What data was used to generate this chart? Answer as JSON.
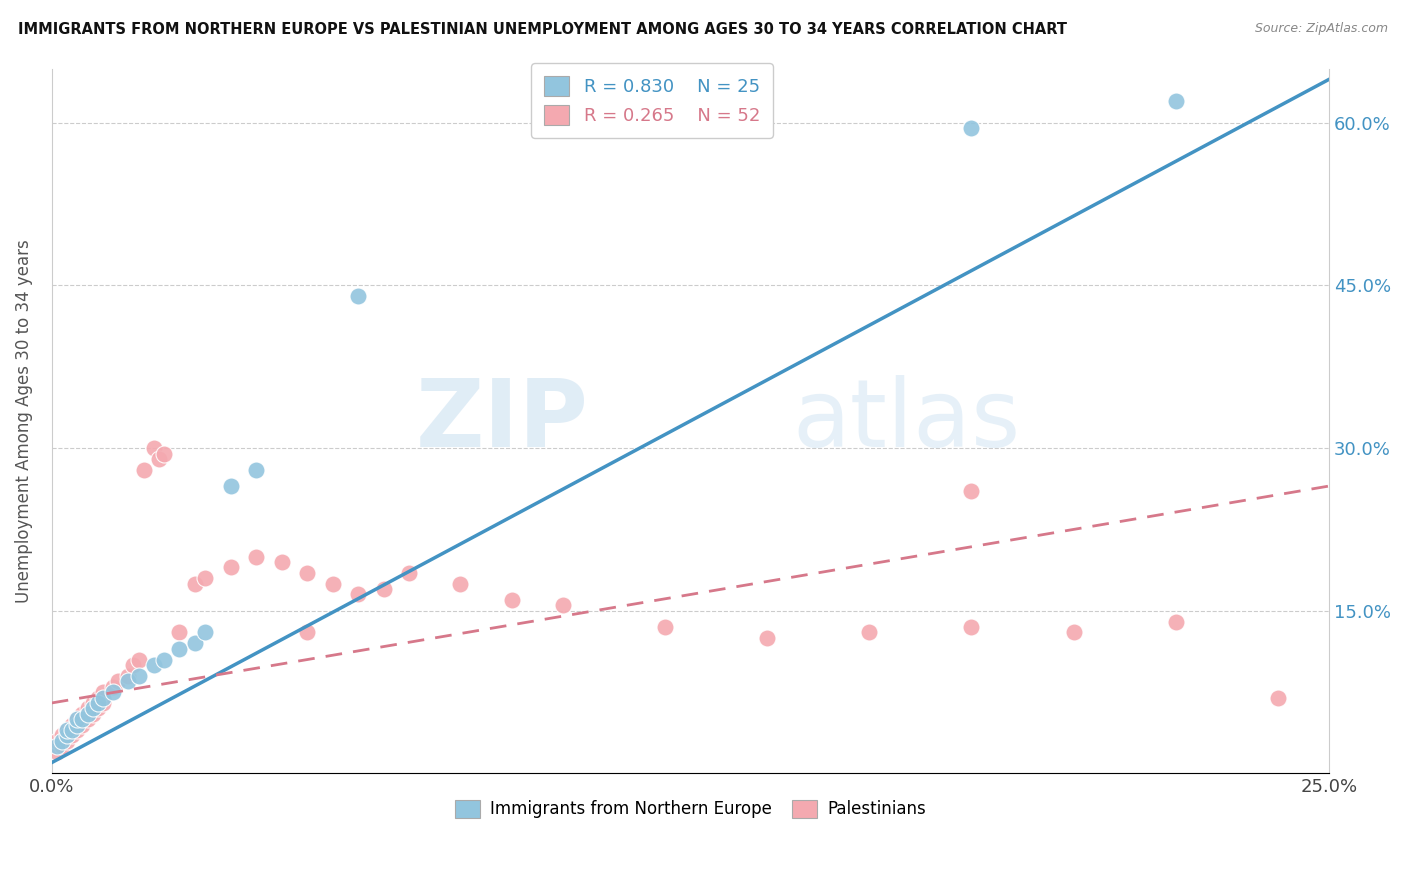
{
  "title": "IMMIGRANTS FROM NORTHERN EUROPE VS PALESTINIAN UNEMPLOYMENT AMONG AGES 30 TO 34 YEARS CORRELATION CHART",
  "source": "Source: ZipAtlas.com",
  "ylabel": "Unemployment Among Ages 30 to 34 years",
  "x_tick_labels": [
    "0.0%",
    "25.0%"
  ],
  "y_tick_labels": [
    "15.0%",
    "30.0%",
    "45.0%",
    "60.0%"
  ],
  "xlim": [
    0,
    0.25
  ],
  "ylim": [
    0,
    0.65
  ],
  "blue_R": "R = 0.830",
  "blue_N": "N = 25",
  "pink_R": "R = 0.265",
  "pink_N": "N = 52",
  "blue_color": "#92c5de",
  "pink_color": "#f4a9b0",
  "blue_line_color": "#4393c3",
  "pink_line_color": "#d6788a",
  "watermark_zip": "ZIP",
  "watermark_atlas": "atlas",
  "legend_label_blue": "Immigrants from Northern Europe",
  "legend_label_pink": "Palestinians",
  "blue_scatter_x": [
    0.001,
    0.002,
    0.003,
    0.003,
    0.004,
    0.005,
    0.005,
    0.006,
    0.007,
    0.008,
    0.009,
    0.01,
    0.012,
    0.015,
    0.017,
    0.02,
    0.022,
    0.025,
    0.028,
    0.03,
    0.035,
    0.04,
    0.06,
    0.18,
    0.22
  ],
  "blue_scatter_y": [
    0.025,
    0.03,
    0.035,
    0.04,
    0.04,
    0.045,
    0.05,
    0.05,
    0.055,
    0.06,
    0.065,
    0.07,
    0.075,
    0.085,
    0.09,
    0.1,
    0.105,
    0.115,
    0.12,
    0.13,
    0.265,
    0.28,
    0.44,
    0.595,
    0.62
  ],
  "pink_scatter_x": [
    0.001,
    0.001,
    0.002,
    0.002,
    0.003,
    0.003,
    0.004,
    0.004,
    0.005,
    0.005,
    0.006,
    0.006,
    0.007,
    0.007,
    0.008,
    0.008,
    0.009,
    0.009,
    0.01,
    0.01,
    0.012,
    0.013,
    0.015,
    0.016,
    0.017,
    0.018,
    0.02,
    0.021,
    0.022,
    0.025,
    0.028,
    0.03,
    0.035,
    0.04,
    0.045,
    0.05,
    0.055,
    0.06,
    0.065,
    0.07,
    0.08,
    0.09,
    0.1,
    0.12,
    0.14,
    0.16,
    0.18,
    0.2,
    0.22,
    0.24,
    0.05,
    0.18
  ],
  "pink_scatter_y": [
    0.02,
    0.03,
    0.025,
    0.035,
    0.03,
    0.04,
    0.035,
    0.045,
    0.04,
    0.05,
    0.045,
    0.055,
    0.05,
    0.06,
    0.055,
    0.065,
    0.06,
    0.07,
    0.065,
    0.075,
    0.08,
    0.085,
    0.09,
    0.1,
    0.105,
    0.28,
    0.3,
    0.29,
    0.295,
    0.13,
    0.175,
    0.18,
    0.19,
    0.2,
    0.195,
    0.185,
    0.175,
    0.165,
    0.17,
    0.185,
    0.175,
    0.16,
    0.155,
    0.135,
    0.125,
    0.13,
    0.135,
    0.13,
    0.14,
    0.07,
    0.13,
    0.26
  ],
  "blue_line_x": [
    0.0,
    0.25
  ],
  "blue_line_y": [
    0.01,
    0.64
  ],
  "pink_line_x": [
    0.0,
    0.25
  ],
  "pink_line_y": [
    0.065,
    0.265
  ]
}
